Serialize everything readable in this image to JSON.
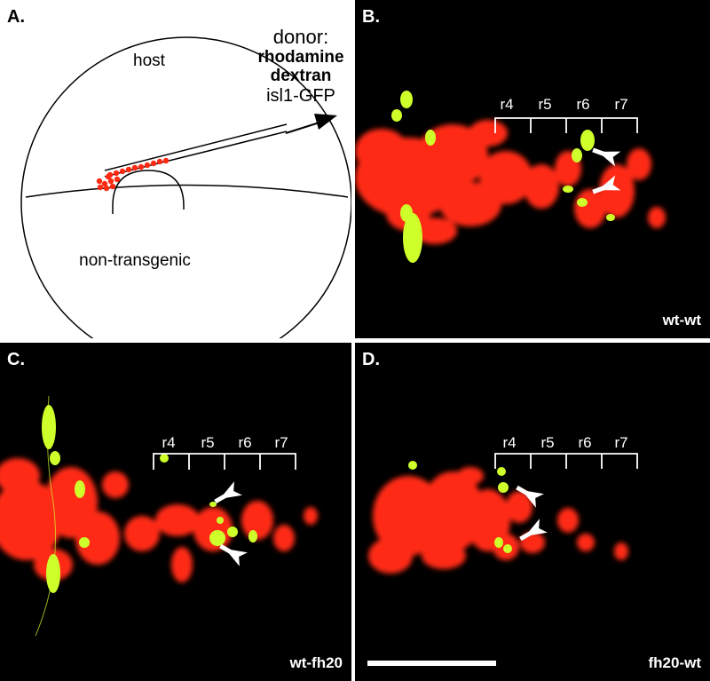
{
  "panels": {
    "a": {
      "letter": "A."
    },
    "b": {
      "letter": "B.",
      "condition": "wt-wt"
    },
    "c": {
      "letter": "C.",
      "condition": "wt-fh20"
    },
    "d": {
      "letter": "D.",
      "condition": "fh20-wt"
    }
  },
  "diagram": {
    "host_label": "host",
    "donor_label": "donor:",
    "donor_line2": "rhodamine",
    "donor_line3": "dextran",
    "donor_line4": "isl1-GFP",
    "lower_label": "non-transgenic"
  },
  "rhombomeres": [
    "r4",
    "r5",
    "r6",
    "r7"
  ],
  "colors": {
    "rhodamine": "#ff2a12",
    "gfp": "#cfff2a",
    "arrow": "#ffffff"
  }
}
